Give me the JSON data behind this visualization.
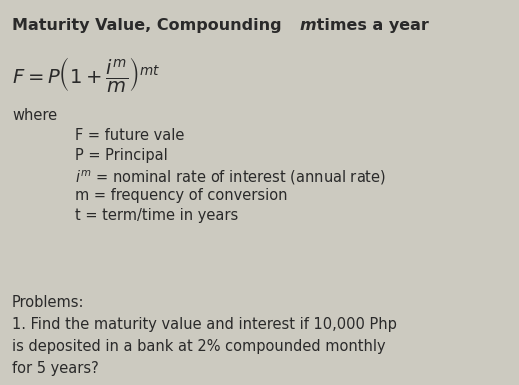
{
  "bg_color": "#cccac0",
  "text_color": "#2a2a2a",
  "title_fontsize": 11.5,
  "body_fontsize": 10.5,
  "formula_fontsize": 12,
  "small_fontsize": 10,
  "title_text1": "Maturity Value, Compounding ",
  "title_text2": "m",
  "title_text3": " times a year",
  "formula": "$F = P\\left(1 + \\dfrac{i^m}{m}\\right)^{mt}$",
  "where": "where",
  "def1": "F = future vale",
  "def2": "P = Principal",
  "def3_pre": "i",
  "def3_sup": "m",
  "def3_post": " = nominal rate of interest (annual rate)",
  "def4": "m = frequency of conversion",
  "def5": "t = term/time in years",
  "problems_label": "Problems:",
  "problem1_line1": "1. Find the maturity value and interest if 10,000 Php",
  "problem1_line2": "is deposited in a bank at 2% compounded monthly",
  "problem1_line3": "for 5 years?"
}
